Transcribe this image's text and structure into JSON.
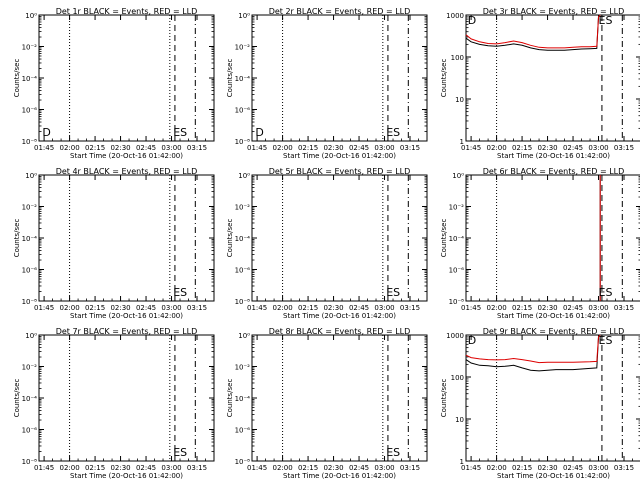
{
  "chart_data": [
    {
      "type": "line",
      "id": "1r",
      "title": "Det 1r BLACK = Events, RED = LLD",
      "xlabel": "Start Time (20-Oct-16 01:42:00)",
      "ylabel": "Counts/sec",
      "x_ticks": [
        "01:45",
        "02:00",
        "02:15",
        "02:30",
        "02:45",
        "03:00",
        "03:15"
      ],
      "y_scale": "log",
      "y_ticks": [
        "10⁻⁸",
        "10⁻⁶",
        "10⁻⁴",
        "10⁻²",
        "10⁰"
      ],
      "ylim": [
        1e-09,
        1e-08
      ],
      "xlim": [
        "01:42",
        "03:25"
      ],
      "markers": {
        "dotted": [
          "01:42",
          "02:00",
          "02:59"
        ],
        "dashed": "03:02",
        "dashdot": "03:14"
      },
      "labels": [
        {
          "text": "D",
          "x": "01:44"
        },
        {
          "text": "ES",
          "x": "03:01"
        }
      ],
      "series": []
    },
    {
      "type": "line",
      "id": "2r",
      "title": "Det 2r BLACK = Events, RED = LLD",
      "xlabel": "Start Time (20-Oct-16 01:42:00)",
      "ylabel": "Counts/sec",
      "x_ticks": [
        "01:45",
        "02:00",
        "02:15",
        "02:30",
        "02:45",
        "03:00",
        "03:15"
      ],
      "y_scale": "log",
      "y_ticks": [
        "10⁻⁸",
        "10⁻⁶",
        "10⁻⁴",
        "10⁻²",
        "10⁰"
      ],
      "ylim": [
        1e-09,
        1e-08
      ],
      "xlim": [
        "01:42",
        "03:25"
      ],
      "markers": {
        "dotted": [
          "01:42",
          "02:00",
          "02:59"
        ],
        "dashed": "03:02",
        "dashdot": "03:14"
      },
      "labels": [
        {
          "text": "D",
          "x": "01:44"
        },
        {
          "text": "ES",
          "x": "03:01"
        }
      ],
      "series": []
    },
    {
      "type": "line",
      "id": "3r",
      "title": "Det 3r BLACK = Events, RED = LLD",
      "xlabel": "Start Time (20-Oct-16 01:42:00)",
      "ylabel": "Counts/sec",
      "x_ticks": [
        "01:45",
        "02:00",
        "02:15",
        "02:30",
        "02:45",
        "03:00",
        "03:15"
      ],
      "y_scale": "log",
      "y_ticks": [
        "1",
        "10",
        "100",
        "1000"
      ],
      "ylim": [
        1,
        1000
      ],
      "xlim": [
        "01:42",
        "03:25"
      ],
      "markers": {
        "dotted": [
          "01:42",
          "02:00"
        ],
        "dashed": "03:02",
        "dashdot": "03:14"
      },
      "labels": [
        {
          "text": "D",
          "x": "01:43"
        },
        {
          "text": "ES",
          "x": "03:00"
        }
      ],
      "series": [
        {
          "color": "#000000",
          "x": [
            "01:42",
            "01:45",
            "01:50",
            "01:55",
            "02:00",
            "02:05",
            "02:10",
            "02:15",
            "02:20",
            "02:25",
            "02:30",
            "02:35",
            "02:40",
            "02:45",
            "02:50",
            "02:55",
            "02:59",
            "03:00",
            "03:01"
          ],
          "y": [
            280,
            230,
            200,
            185,
            180,
            190,
            205,
            190,
            165,
            150,
            145,
            145,
            145,
            150,
            155,
            158,
            160,
            900,
            1000
          ]
        },
        {
          "color": "#dd0000",
          "x": [
            "01:42",
            "01:45",
            "01:50",
            "01:55",
            "02:00",
            "02:05",
            "02:10",
            "02:15",
            "02:20",
            "02:25",
            "02:30",
            "02:35",
            "02:40",
            "02:45",
            "02:50",
            "02:55",
            "02:59",
            "03:00",
            "03:01"
          ],
          "y": [
            340,
            270,
            230,
            210,
            205,
            220,
            240,
            220,
            190,
            170,
            165,
            165,
            165,
            170,
            175,
            175,
            180,
            900,
            1000
          ]
        }
      ]
    },
    {
      "type": "line",
      "id": "4r",
      "title": "Det 4r BLACK = Events, RED = LLD",
      "xlabel": "Start Time (20-Oct-16 01:42:00)",
      "ylabel": "Counts/sec",
      "x_ticks": [
        "01:45",
        "02:00",
        "02:15",
        "02:30",
        "02:45",
        "03:00",
        "03:15"
      ],
      "y_scale": "log",
      "y_ticks": [
        "10⁻⁸",
        "10⁻⁶",
        "10⁻⁴",
        "10⁻²",
        "10⁰"
      ],
      "ylim": [
        1e-09,
        1e-08
      ],
      "xlim": [
        "01:42",
        "03:25"
      ],
      "markers": {
        "dotted": [
          "01:42",
          "02:00",
          "02:59"
        ],
        "dashed": "03:02",
        "dashdot": "03:14"
      },
      "labels": [
        {
          "text": "ES",
          "x": "03:01"
        }
      ],
      "series": []
    },
    {
      "type": "line",
      "id": "5r",
      "title": "Det 5r BLACK = Events, RED = LLD",
      "xlabel": "Start Time (20-Oct-16 01:42:00)",
      "ylabel": "Counts/sec",
      "x_ticks": [
        "01:45",
        "02:00",
        "02:15",
        "02:30",
        "02:45",
        "03:00",
        "03:15"
      ],
      "y_scale": "log",
      "y_ticks": [
        "10⁻⁸",
        "10⁻⁶",
        "10⁻⁴",
        "10⁻²",
        "10⁰"
      ],
      "ylim": [
        1e-09,
        1e-08
      ],
      "xlim": [
        "01:42",
        "03:25"
      ],
      "markers": {
        "dotted": [
          "01:42",
          "02:00",
          "02:59"
        ],
        "dashed": "03:02",
        "dashdot": "03:14"
      },
      "labels": [
        {
          "text": "ES",
          "x": "03:01"
        }
      ],
      "series": []
    },
    {
      "type": "line",
      "id": "6r",
      "title": "Det 6r BLACK = Events, RED = LLD",
      "xlabel": "Start Time (20-Oct-16 01:42:00)",
      "ylabel": "Counts/sec",
      "x_ticks": [
        "01:45",
        "02:00",
        "02:15",
        "02:30",
        "02:45",
        "03:00",
        "03:15"
      ],
      "y_scale": "log",
      "y_ticks": [
        "10⁻⁸",
        "10⁻⁶",
        "10⁻⁴",
        "10⁻²",
        "10⁰"
      ],
      "ylim": [
        1e-09,
        1e-08
      ],
      "xlim": [
        "01:42",
        "03:25"
      ],
      "markers": {
        "dotted": [
          "01:42",
          "02:00"
        ],
        "dashed": "03:02",
        "dashdot": "03:14"
      },
      "labels": [
        {
          "text": "ES",
          "x": "03:00"
        }
      ],
      "series": [
        {
          "color": "#000000",
          "x": [
            "03:01",
            "03:01"
          ],
          "y": [
            1e-09,
            1e-08
          ]
        },
        {
          "color": "#dd0000",
          "x": [
            "03:01",
            "03:01"
          ],
          "y": [
            1e-09,
            1e-08
          ]
        }
      ]
    },
    {
      "type": "line",
      "id": "7r",
      "title": "Det 7r BLACK = Events, RED = LLD",
      "xlabel": "Start Time (20-Oct-16 01:42:00)",
      "ylabel": "Counts/sec",
      "x_ticks": [
        "01:45",
        "02:00",
        "02:15",
        "02:30",
        "02:45",
        "03:00",
        "03:15"
      ],
      "y_scale": "log",
      "y_ticks": [
        "10⁻⁸",
        "10⁻⁶",
        "10⁻⁴",
        "10⁻²",
        "10⁰"
      ],
      "ylim": [
        1e-09,
        1e-08
      ],
      "xlim": [
        "01:42",
        "03:25"
      ],
      "markers": {
        "dotted": [
          "01:42",
          "02:00",
          "02:59"
        ],
        "dashed": "03:02",
        "dashdot": "03:14"
      },
      "labels": [
        {
          "text": "ES",
          "x": "03:01"
        }
      ],
      "series": []
    },
    {
      "type": "line",
      "id": "8r",
      "title": "Det 8r BLACK = Events, RED = LLD",
      "xlabel": "Start Time (20-Oct-16 01:42:00)",
      "ylabel": "Counts/sec",
      "x_ticks": [
        "01:45",
        "02:00",
        "02:15",
        "02:30",
        "02:45",
        "03:00",
        "03:15"
      ],
      "y_scale": "log",
      "y_ticks": [
        "10⁻⁸",
        "10⁻⁶",
        "10⁻⁴",
        "10⁻²",
        "10⁰"
      ],
      "ylim": [
        1e-09,
        1e-08
      ],
      "xlim": [
        "01:42",
        "03:25"
      ],
      "markers": {
        "dotted": [
          "01:42",
          "02:00",
          "02:59"
        ],
        "dashed": "03:02",
        "dashdot": "03:14"
      },
      "labels": [
        {
          "text": "ES",
          "x": "03:01"
        }
      ],
      "series": []
    },
    {
      "type": "line",
      "id": "9r",
      "title": "Det 9r BLACK = Events, RED = LLD",
      "xlabel": "Start Time (20-Oct-16 01:42:00)",
      "ylabel": "Counts/sec",
      "x_ticks": [
        "01:45",
        "02:00",
        "02:15",
        "02:30",
        "02:45",
        "03:00",
        "03:15"
      ],
      "y_scale": "log",
      "y_ticks": [
        "1",
        "10",
        "100",
        "1000"
      ],
      "ylim": [
        1,
        1000
      ],
      "xlim": [
        "01:42",
        "03:25"
      ],
      "markers": {
        "dotted": [
          "01:42",
          "02:00"
        ],
        "dashed": "03:02",
        "dashdot": "03:14"
      },
      "labels": [
        {
          "text": "D",
          "x": "01:43"
        },
        {
          "text": "ES",
          "x": "03:00"
        }
      ],
      "series": [
        {
          "color": "#000000",
          "x": [
            "01:42",
            "01:45",
            "01:50",
            "01:55",
            "02:00",
            "02:05",
            "02:10",
            "02:15",
            "02:20",
            "02:25",
            "02:30",
            "02:35",
            "02:40",
            "02:45",
            "02:50",
            "02:55",
            "02:59",
            "03:00",
            "03:01"
          ],
          "y": [
            260,
            215,
            190,
            185,
            175,
            180,
            190,
            165,
            145,
            140,
            145,
            150,
            150,
            150,
            155,
            160,
            165,
            900,
            1000
          ]
        },
        {
          "color": "#dd0000",
          "x": [
            "01:42",
            "01:45",
            "01:50",
            "01:55",
            "02:00",
            "02:05",
            "02:10",
            "02:15",
            "02:20",
            "02:25",
            "02:30",
            "02:35",
            "02:40",
            "02:45",
            "02:50",
            "02:55",
            "02:59",
            "03:00",
            "03:01"
          ],
          "y": [
            330,
            290,
            270,
            260,
            255,
            260,
            275,
            260,
            240,
            220,
            225,
            225,
            225,
            225,
            228,
            230,
            235,
            900,
            1000
          ]
        }
      ]
    }
  ]
}
